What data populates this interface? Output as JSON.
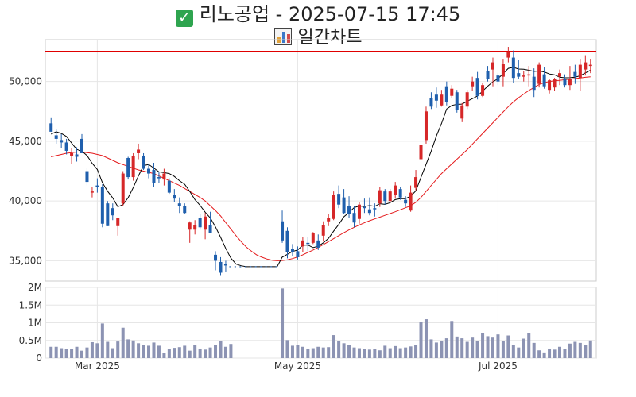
{
  "header": {
    "title": "리노공업 - 2025-07-15 17:45",
    "subtitle": "일간차트"
  },
  "colors": {
    "up": "#d62728",
    "down": "#1f5fad",
    "ma_short": "#000000",
    "ma_long": "#e41a1c",
    "resistance": "#e00000",
    "volume": "#8c93b3",
    "grid": "#e6e6e6"
  },
  "icons": [
    "check-mark-icon",
    "bar-chart-icon"
  ],
  "chart_data": {
    "type": "candlestick",
    "y_ticks": [
      "50,000",
      "45,000",
      "40,000",
      "35,000"
    ],
    "y_tick_values": [
      50000,
      45000,
      40000,
      35000
    ],
    "ylim": [
      33300,
      53500
    ],
    "volume_ticks": [
      "2M",
      "1.5M",
      "1M",
      "0.5M",
      "0"
    ],
    "volume_tick_values": [
      2000000,
      1500000,
      1000000,
      500000,
      0
    ],
    "volume_ylim": [
      0,
      2000000
    ],
    "x_ticks": [
      "Mar 2025",
      "May 2025",
      "Jul 2025"
    ],
    "x_tick_positions": [
      9,
      48,
      87
    ],
    "resistance_level": 52500,
    "candles": [
      [
        46500,
        47000,
        45800,
        45800
      ],
      [
        45500,
        46000,
        44800,
        45200
      ],
      [
        45100,
        45600,
        44400,
        44900
      ],
      [
        44900,
        45200,
        43900,
        44200
      ],
      [
        43800,
        44400,
        43100,
        44000
      ],
      [
        43900,
        44500,
        43300,
        43700
      ],
      [
        45200,
        45600,
        44100,
        44000
      ],
      [
        42500,
        42800,
        41300,
        41600
      ],
      [
        40700,
        41200,
        40300,
        40800
      ],
      [
        41300,
        41900,
        40700,
        41200
      ],
      [
        41200,
        41400,
        37800,
        38100
      ],
      [
        39800,
        40000,
        37900,
        37900
      ],
      [
        39400,
        39800,
        38400,
        38800
      ],
      [
        37900,
        38500,
        37100,
        38600
      ],
      [
        39800,
        42500,
        39600,
        42300
      ],
      [
        43600,
        43700,
        41800,
        42000
      ],
      [
        42000,
        44000,
        41700,
        43800
      ],
      [
        44000,
        44800,
        43500,
        44300
      ],
      [
        43800,
        44000,
        42600,
        42700
      ],
      [
        42700,
        43100,
        41900,
        42300
      ],
      [
        42600,
        43200,
        41200,
        41500
      ],
      [
        42000,
        42400,
        41500,
        41900
      ],
      [
        41800,
        42700,
        41300,
        42300
      ],
      [
        41700,
        41900,
        40600,
        40700
      ],
      [
        40500,
        41000,
        39900,
        40200
      ],
      [
        39800,
        40300,
        39000,
        39600
      ],
      [
        39600,
        39800,
        38900,
        39000
      ],
      [
        37600,
        38300,
        36500,
        38200
      ],
      [
        37600,
        38400,
        37200,
        38000
      ],
      [
        38600,
        38900,
        37600,
        37800
      ],
      [
        37600,
        39000,
        36800,
        38700
      ],
      [
        38000,
        39100,
        37500,
        37300
      ],
      [
        35500,
        35800,
        34200,
        35000
      ],
      [
        34900,
        35300,
        33800,
        34000
      ],
      [
        34700,
        35000,
        34100,
        34600
      ],
      [
        34500,
        34500,
        34500,
        34500
      ],
      [
        34500,
        34500,
        34500,
        34500
      ],
      [
        34500,
        34500,
        34500,
        34500
      ],
      [
        34500,
        34500,
        34500,
        34500
      ],
      [
        34500,
        34500,
        34500,
        34500
      ],
      [
        34500,
        34500,
        34500,
        34500
      ],
      [
        34500,
        34500,
        34500,
        34500
      ],
      [
        34500,
        34500,
        34500,
        34500
      ],
      [
        34500,
        34500,
        34500,
        34500
      ],
      [
        34500,
        34500,
        34500,
        34500
      ],
      [
        38300,
        39200,
        36500,
        36700
      ],
      [
        37500,
        37800,
        35200,
        35700
      ],
      [
        36000,
        36400,
        35400,
        35700
      ],
      [
        35800,
        36200,
        35100,
        35300
      ],
      [
        36200,
        37000,
        35700,
        36700
      ],
      [
        36500,
        37000,
        35800,
        36400
      ],
      [
        36500,
        37400,
        36400,
        37300
      ],
      [
        36700,
        37200,
        35900,
        36100
      ],
      [
        37100,
        38300,
        36600,
        38000
      ],
      [
        38300,
        38900,
        37900,
        38600
      ],
      [
        38500,
        40800,
        38400,
        40500
      ],
      [
        40600,
        41300,
        39400,
        39700
      ],
      [
        40300,
        41000,
        38900,
        39000
      ],
      [
        39600,
        40400,
        38600,
        38900
      ],
      [
        39000,
        39600,
        37800,
        38200
      ],
      [
        38500,
        39900,
        38100,
        39700
      ],
      [
        39500,
        40200,
        39000,
        39400
      ],
      [
        39300,
        40300,
        38800,
        39000
      ],
      [
        39400,
        39800,
        38700,
        39300
      ],
      [
        39800,
        41200,
        39500,
        40900
      ],
      [
        40800,
        41000,
        39700,
        40000
      ],
      [
        40000,
        41000,
        39900,
        40800
      ],
      [
        40500,
        41600,
        40200,
        41300
      ],
      [
        41000,
        41200,
        40100,
        40300
      ],
      [
        40100,
        40400,
        39500,
        39800
      ],
      [
        39200,
        41300,
        39100,
        40700
      ],
      [
        41100,
        42600,
        40900,
        42000
      ],
      [
        43500,
        45000,
        43200,
        44700
      ],
      [
        45100,
        47900,
        44800,
        47500
      ],
      [
        48600,
        49100,
        47700,
        47900
      ],
      [
        48900,
        49500,
        47800,
        48400
      ],
      [
        48000,
        49300,
        47900,
        48900
      ],
      [
        49600,
        50000,
        48000,
        48300
      ],
      [
        48800,
        49700,
        48600,
        49400
      ],
      [
        49100,
        49300,
        47400,
        47600
      ],
      [
        46900,
        48200,
        46600,
        48000
      ],
      [
        47900,
        49300,
        47700,
        49100
      ],
      [
        49600,
        50400,
        49200,
        50000
      ],
      [
        50300,
        50800,
        48500,
        48800
      ],
      [
        48800,
        49900,
        48700,
        49700
      ],
      [
        50900,
        51300,
        50000,
        50200
      ],
      [
        51000,
        52000,
        49600,
        51600
      ],
      [
        50500,
        50700,
        49700,
        50000
      ],
      [
        50400,
        51900,
        49600,
        51500
      ],
      [
        52000,
        52900,
        51600,
        52500
      ],
      [
        52000,
        52600,
        49900,
        50300
      ],
      [
        50700,
        51800,
        50200,
        50400
      ],
      [
        50400,
        50900,
        50000,
        50500
      ],
      [
        50500,
        51300,
        49600,
        50600
      ],
      [
        50400,
        51100,
        48700,
        49300
      ],
      [
        49800,
        51600,
        49500,
        51400
      ],
      [
        50600,
        51200,
        49400,
        49600
      ],
      [
        49300,
        50200,
        49000,
        50100
      ],
      [
        49500,
        50300,
        49200,
        50200
      ],
      [
        50400,
        51000,
        49700,
        50700
      ],
      [
        50200,
        50600,
        49500,
        49700
      ],
      [
        49700,
        51300,
        49300,
        50200
      ],
      [
        50800,
        51400,
        49800,
        50400
      ],
      [
        50300,
        51900,
        49200,
        51400
      ],
      [
        51000,
        52200,
        50500,
        51600
      ],
      [
        51300,
        51900,
        50700,
        51400
      ]
    ],
    "ma_short": [
      45600,
      45800,
      45650,
      45400,
      44850,
      44320,
      44180,
      43800,
      43160,
      42640,
      41520,
      40820,
      40260,
      39520,
      39700,
      40280,
      41120,
      42100,
      42960,
      43060,
      42760,
      42440,
      42380,
      42300,
      42060,
      41700,
      41400,
      40800,
      40120,
      39640,
      39060,
      38580,
      37840,
      36960,
      36040,
      35220,
      34720,
      34580,
      34500,
      34500,
      34500,
      34500,
      34500,
      34500,
      34500,
      35300,
      35540,
      35780,
      35900,
      36300,
      36320,
      36100,
      36220,
      36500,
      36870,
      37480,
      38040,
      38680,
      39040,
      39450,
      39580,
      39540,
      39620,
      39550,
      39770,
      39720,
      39860,
      40120,
      40200,
      40200,
      40400,
      40850,
      41980,
      43080,
      44180,
      45440,
      46490,
      47700,
      48000,
      48090,
      48110,
      48360,
      48560,
      48780,
      49200,
      49610,
      49980,
      50230,
      50660,
      51100,
      51180,
      51040,
      51020,
      50940,
      50840,
      50880,
      50800,
      50630,
      50560,
      50360,
      50310,
      50320,
      50360,
      50480,
      50720,
      50940
    ],
    "ma_long": [
      43700,
      43800,
      43900,
      44000,
      44050,
      44100,
      44100,
      44050,
      44000,
      43900,
      43800,
      43600,
      43400,
      43200,
      43050,
      42900,
      42750,
      42600,
      42500,
      42400,
      42300,
      42100,
      41900,
      41700,
      41500,
      41300,
      41050,
      40800,
      40550,
      40300,
      40000,
      39600,
      39200,
      38750,
      38200,
      37650,
      37100,
      36600,
      36150,
      35800,
      35500,
      35300,
      35150,
      35050,
      35000,
      35020,
      35080,
      35180,
      35320,
      35500,
      35700,
      35900,
      36120,
      36350,
      36600,
      36850,
      37100,
      37350,
      37580,
      37800,
      38000,
      38180,
      38350,
      38500,
      38650,
      38800,
      38950,
      39100,
      39270,
      39430,
      39600,
      39900,
      40300,
      40800,
      41300,
      41800,
      42300,
      42700,
      43100,
      43500,
      43900,
      44300,
      44750,
      45200,
      45650,
      46100,
      46550,
      47000,
      47450,
      47900,
      48300,
      48650,
      48950,
      49250,
      49500,
      49750,
      49900,
      50000,
      50070,
      50100,
      50150,
      50200,
      50250,
      50300,
      50350,
      50400
    ],
    "volume": [
      320000,
      320000,
      280000,
      250000,
      260000,
      320000,
      210000,
      300000,
      450000,
      420000,
      980000,
      460000,
      280000,
      470000,
      860000,
      530000,
      500000,
      420000,
      380000,
      350000,
      440000,
      350000,
      150000,
      260000,
      290000,
      310000,
      350000,
      210000,
      370000,
      270000,
      240000,
      300000,
      380000,
      490000,
      320000,
      400000,
      0,
      0,
      0,
      0,
      0,
      0,
      0,
      0,
      0,
      1970000,
      510000,
      350000,
      360000,
      320000,
      270000,
      280000,
      320000,
      300000,
      310000,
      650000,
      490000,
      420000,
      380000,
      300000,
      280000,
      250000,
      240000,
      250000,
      220000,
      350000,
      280000,
      340000,
      280000,
      300000,
      330000,
      380000,
      1030000,
      1100000,
      530000,
      440000,
      480000,
      560000,
      1050000,
      610000,
      560000,
      460000,
      580000,
      480000,
      710000,
      620000,
      580000,
      670000,
      490000,
      640000,
      360000,
      300000,
      550000,
      700000,
      430000,
      220000,
      160000,
      270000,
      240000,
      320000,
      260000,
      410000,
      460000,
      430000,
      380000,
      500000
    ]
  }
}
